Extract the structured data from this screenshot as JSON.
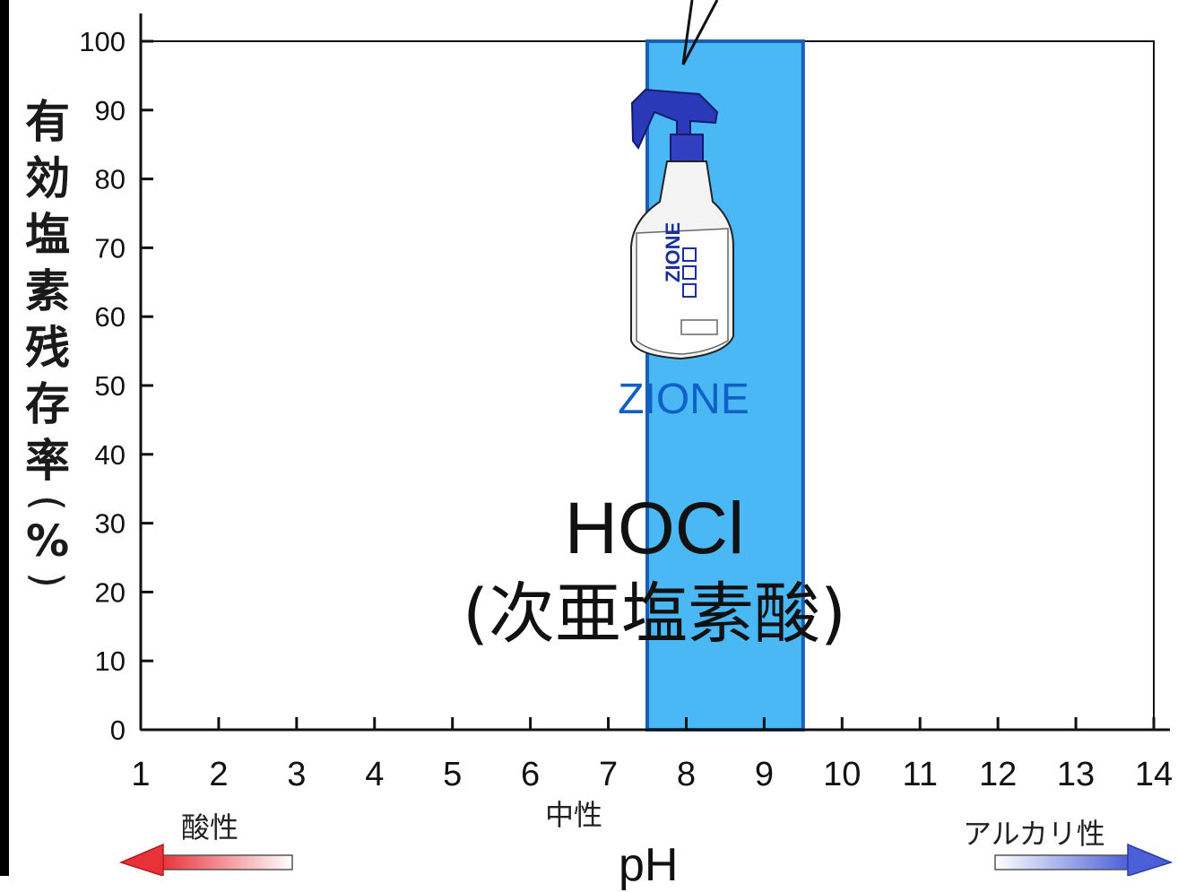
{
  "chart_data": {
    "type": "bar",
    "title": "",
    "xlabel": "pH",
    "ylabel": "有効塩素残存率(%)",
    "xlim": [
      1,
      14
    ],
    "ylim": [
      0,
      100
    ],
    "x_ticks": [
      1,
      2,
      3,
      4,
      5,
      6,
      7,
      8,
      9,
      10,
      11,
      12,
      13,
      14
    ],
    "y_ticks": [
      0,
      10,
      20,
      30,
      40,
      50,
      60,
      70,
      80,
      90,
      100
    ],
    "highlight_band": {
      "x_start": 7.5,
      "x_end": 9.5,
      "y_value": 100,
      "label": "ZIONE",
      "color": "#4ab8f5",
      "border_color": "#1b5fb5"
    },
    "annotations": {
      "species_main": "HOCl",
      "species_sub": "(次亜塩素酸)",
      "acidic": "酸性",
      "neutral": "中性",
      "alkaline": "アルカリ性"
    },
    "grid": false,
    "colors": {
      "acid_arrow": "#e8323a",
      "alkaline_arrow": "#4b5fd8",
      "axis": "#111111"
    }
  },
  "ylabel_chars": [
    "有",
    "効",
    "塩",
    "素",
    "残",
    "存",
    "率"
  ],
  "ylabel_open": "(",
  "ylabel_pct": "%",
  "ylabel_close": ")",
  "product": {
    "name": "ZIONE",
    "icon": "spray-bottle-icon"
  }
}
